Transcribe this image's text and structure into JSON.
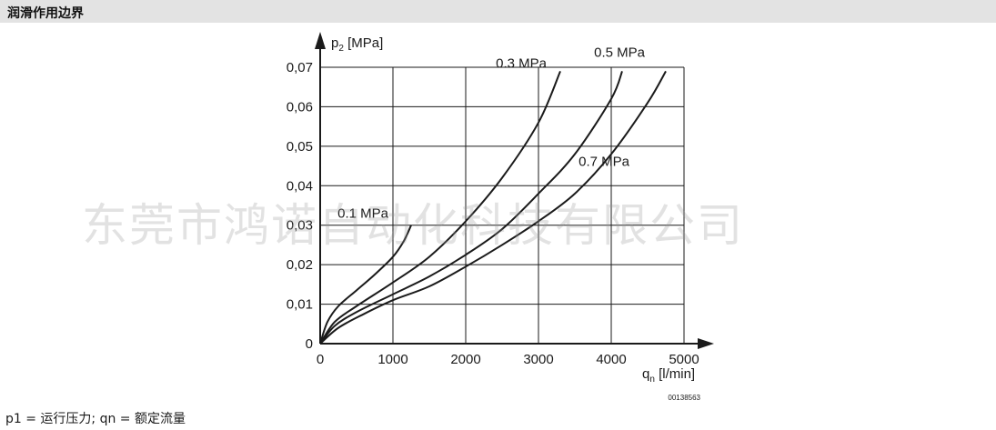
{
  "header": {
    "title": "润滑作用边界"
  },
  "watermark": {
    "text": "东莞市鸿诺自动化科技有限公司"
  },
  "footnote": {
    "text": "p1 = 运行压力; qn = 额定流量"
  },
  "chart_data": {
    "type": "line",
    "title": "",
    "ylabel_main": "p",
    "ylabel_sub": "2",
    "ylabel_unit": " [MPa]",
    "xlabel_main": "q",
    "xlabel_sub": "n",
    "xlabel_unit": " [l/min]",
    "xlim": [
      0,
      5000
    ],
    "ylim": [
      0,
      0.07
    ],
    "xticks": [
      0,
      1000,
      2000,
      3000,
      4000,
      5000
    ],
    "yticks": [
      0,
      0.01,
      0.02,
      0.03,
      0.04,
      0.05,
      0.06,
      0.07
    ],
    "xtick_labels": [
      "0",
      "1000",
      "2000",
      "3000",
      "4000",
      "5000"
    ],
    "ytick_labels": [
      "0",
      "0,01",
      "0,02",
      "0,03",
      "0,04",
      "0,05",
      "0,06",
      "0,07"
    ],
    "grid": true,
    "figure_code": "00138563",
    "series": [
      {
        "name": "0.1 MPa",
        "x": [
          0,
          100,
          250,
          500,
          750,
          1000,
          1150,
          1250
        ],
        "y": [
          0,
          0.0055,
          0.0095,
          0.0135,
          0.0175,
          0.022,
          0.026,
          0.03
        ]
      },
      {
        "name": "0.3 MPa",
        "x": [
          0,
          200,
          500,
          1000,
          1500,
          2000,
          2500,
          3000,
          3300
        ],
        "y": [
          0,
          0.0055,
          0.0095,
          0.0155,
          0.022,
          0.031,
          0.042,
          0.056,
          0.069
        ]
      },
      {
        "name": "0.5 MPa",
        "x": [
          0,
          200,
          500,
          1000,
          1500,
          2000,
          2500,
          3000,
          3500,
          4000,
          4150
        ],
        "y": [
          0,
          0.0045,
          0.008,
          0.0125,
          0.017,
          0.0225,
          0.029,
          0.038,
          0.048,
          0.062,
          0.069
        ]
      },
      {
        "name": "0.7 MPa",
        "x": [
          0,
          250,
          600,
          1000,
          1500,
          2000,
          2500,
          3000,
          3500,
          4000,
          4500,
          4750
        ],
        "y": [
          0,
          0.004,
          0.0075,
          0.011,
          0.0145,
          0.0195,
          0.025,
          0.031,
          0.038,
          0.048,
          0.061,
          0.069
        ]
      }
    ]
  }
}
